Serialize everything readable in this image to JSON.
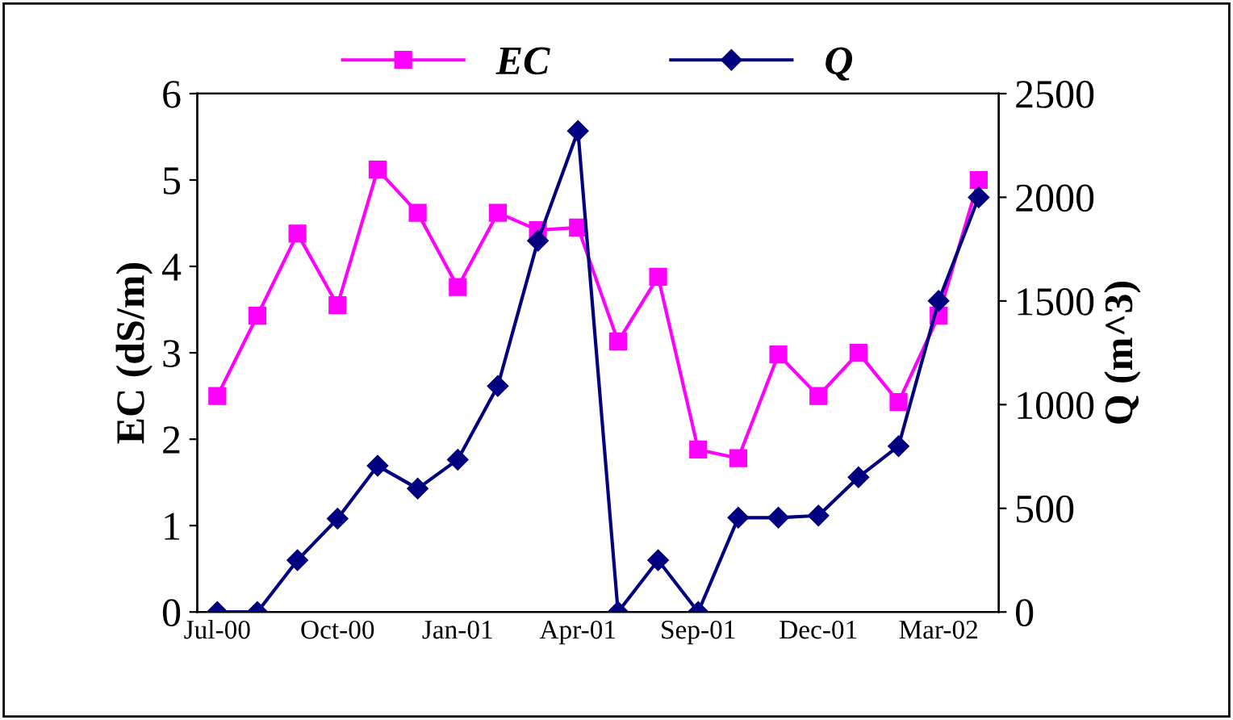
{
  "chart_data": {
    "type": "line",
    "categories": [
      "Jul-00",
      null,
      null,
      "Oct-00",
      null,
      null,
      "Jan-01",
      null,
      null,
      "Apr-01",
      null,
      null,
      "Sep-01",
      null,
      null,
      "Dec-01",
      null,
      null,
      "Mar-02",
      null
    ],
    "series": [
      {
        "name": "EC",
        "color": "#ff00ff",
        "marker": "square",
        "values": [
          2.5,
          3.43,
          4.38,
          3.55,
          5.12,
          4.62,
          3.76,
          4.62,
          4.42,
          4.45,
          3.13,
          3.88,
          1.88,
          1.78,
          2.98,
          2.5,
          3.0,
          2.43,
          3.43,
          5.0
        ]
      },
      {
        "name": "Q",
        "color": "#000080",
        "marker": "diamond",
        "axis": "y2",
        "values": [
          0,
          0,
          250,
          450,
          705,
          595,
          735,
          1090,
          1790,
          2320,
          0,
          250,
          0,
          455,
          455,
          465,
          650,
          800,
          1500,
          2000
        ]
      }
    ],
    "ylabel": "EC (dS/m)",
    "y2label": "Q (m^3)",
    "ylim": [
      0,
      6
    ],
    "yticks": [
      0,
      1,
      2,
      3,
      4,
      5,
      6
    ],
    "y2lim": [
      0,
      2500
    ],
    "y2ticks": [
      0,
      500,
      1000,
      1500,
      2000,
      2500
    ],
    "legend": "top",
    "grid": false,
    "line_style": "solid"
  }
}
